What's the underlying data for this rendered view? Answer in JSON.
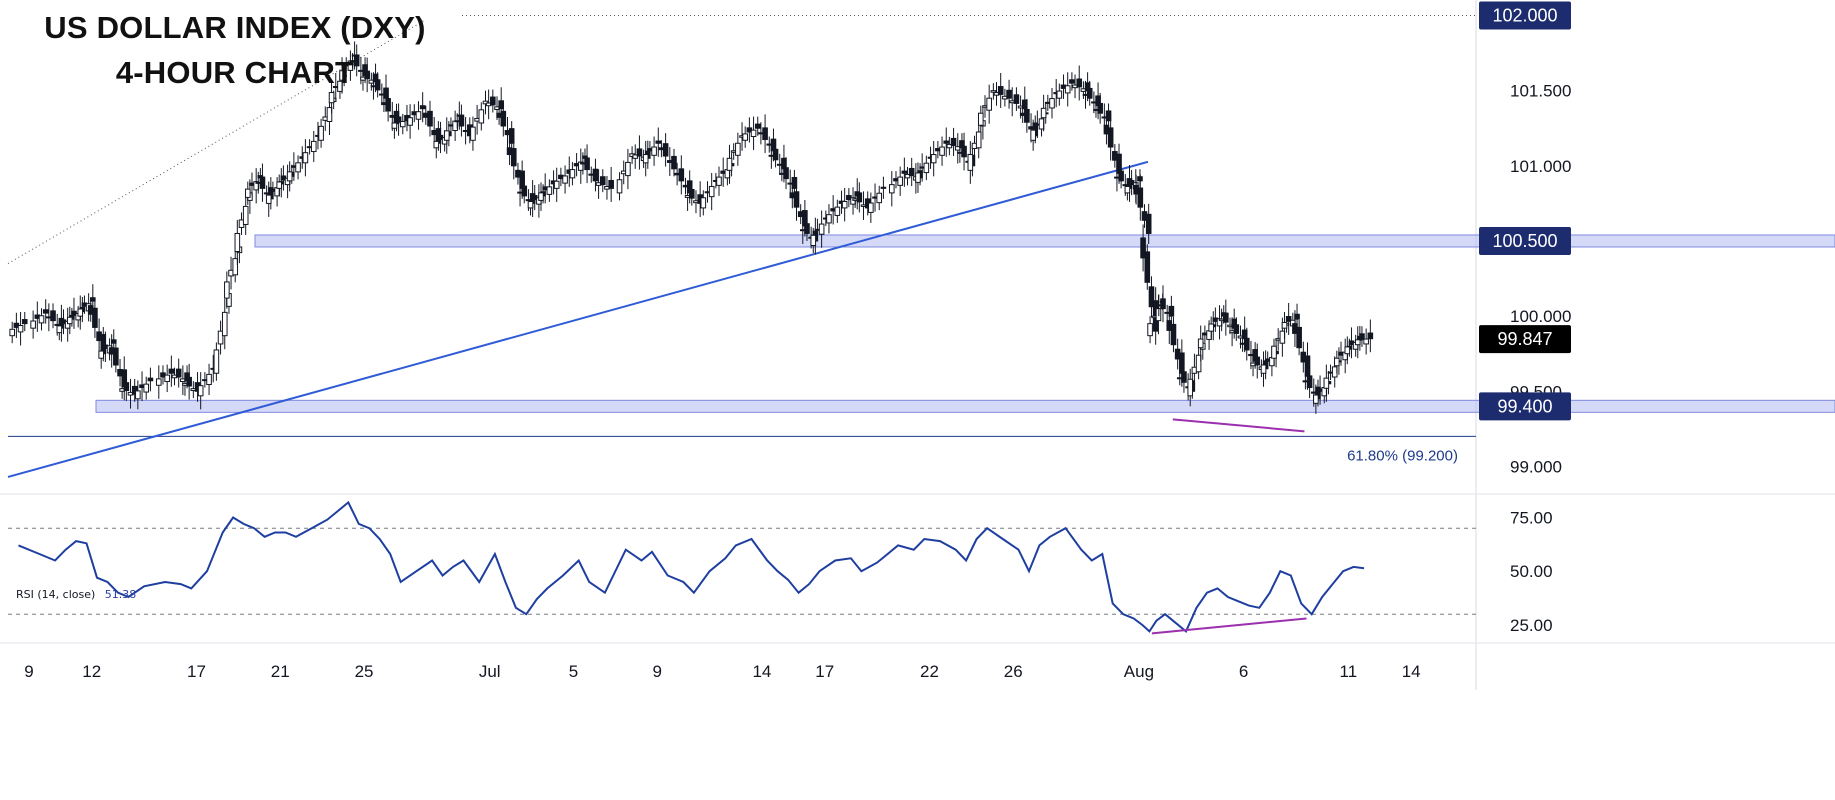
{
  "title_lines": [
    "US DOLLAR INDEX (DXY)",
    "4-HOUR CHART"
  ],
  "chart_data": [
    {
      "type": "candlestick",
      "ylim": [
        98.83,
        102.05
      ],
      "y_ticks": [
        99.0,
        99.5,
        100.0,
        100.5,
        101.0,
        101.5,
        102.0
      ],
      "y_tick_labels": [
        "99.000",
        "99.500",
        "100.000",
        "100.500",
        "101.000",
        "101.500",
        "102.000"
      ],
      "highlight_labels": [
        "102.000",
        "100.500",
        "99.847",
        "99.400"
      ],
      "current_price": "99.847",
      "x_tick_labels": [
        "9",
        "12",
        "17",
        "21",
        "25",
        "Jul",
        "5",
        "9",
        "14",
        "17",
        "22",
        "26",
        "Aug",
        "6",
        "11",
        "14"
      ],
      "support_resistance_zones": [
        100.5,
        99.4
      ],
      "fib_line": {
        "label": "61.80% (99.200)",
        "value": 99.2
      },
      "trendline": {
        "from": [
          "Jun 8",
          98.93
        ],
        "to": [
          "Jul 31",
          101.0
        ]
      },
      "close_path": [
        [
          "Jun 8",
          99.95
        ],
        [
          "Jun 9",
          100.02
        ],
        [
          "Jun 10",
          99.92
        ],
        [
          "Jun 10",
          99.98
        ],
        [
          "Jun 11",
          100.03
        ],
        [
          "Jun 11",
          100.1
        ],
        [
          "Jun 12",
          99.75
        ],
        [
          "Jun 12",
          99.82
        ],
        [
          "Jun 13",
          99.53
        ],
        [
          "Jun 13",
          99.48
        ],
        [
          "Jun 14",
          99.57
        ],
        [
          "Jun 15",
          99.62
        ],
        [
          "Jun 16",
          99.57
        ],
        [
          "Jun 16",
          99.5
        ],
        [
          "Jun 17",
          99.65
        ],
        [
          "Jun 18",
          100.15
        ],
        [
          "Jun 18",
          100.46
        ],
        [
          "Jun 19",
          100.82
        ],
        [
          "Jun 19",
          100.92
        ],
        [
          "Jun 20",
          100.78
        ],
        [
          "Jun 20",
          100.88
        ],
        [
          "Jun 21",
          100.93
        ],
        [
          "Jun 21",
          101.05
        ],
        [
          "Jun 22",
          101.2
        ],
        [
          "Jun 23",
          101.45
        ],
        [
          "Jun 23",
          101.6
        ],
        [
          "Jun 24",
          101.73
        ],
        [
          "Jun 24",
          101.6
        ],
        [
          "Jun 25",
          101.56
        ],
        [
          "Jun 25",
          101.45
        ],
        [
          "Jun 26",
          101.28
        ],
        [
          "Jun 26",
          101.3
        ],
        [
          "Jun 27",
          101.38
        ],
        [
          "Jun 28",
          101.15
        ],
        [
          "Jun 28",
          101.2
        ],
        [
          "Jun 29",
          101.33
        ],
        [
          "Jun 29",
          101.2
        ],
        [
          "Jun 30",
          101.43
        ],
        [
          "Jul 1",
          101.38
        ],
        [
          "Jul 1",
          101.15
        ],
        [
          "Jul 2",
          100.85
        ],
        [
          "Jul 2",
          100.75
        ],
        [
          "Jul 3",
          100.8
        ],
        [
          "Jul 3",
          100.88
        ],
        [
          "Jul 4",
          100.95
        ],
        [
          "Jul 5",
          101.05
        ],
        [
          "Jul 5",
          100.9
        ],
        [
          "Jul 6",
          100.85
        ],
        [
          "Jul 7",
          101.08
        ],
        [
          "Jul 8",
          101.05
        ],
        [
          "Jul 8",
          101.15
        ],
        [
          "Jul 9",
          100.98
        ],
        [
          "Jul 10",
          100.82
        ],
        [
          "Jul 10",
          100.75
        ],
        [
          "Jul 11",
          100.9
        ],
        [
          "Jul 12",
          101.0
        ],
        [
          "Jul 12",
          101.2
        ],
        [
          "Jul 13",
          101.25
        ],
        [
          "Jul 14",
          101.1
        ],
        [
          "Jul 14",
          100.98
        ],
        [
          "Jul 15",
          100.85
        ],
        [
          "Jul 15",
          100.6
        ],
        [
          "Jul 16",
          100.5
        ],
        [
          "Jul 16",
          100.65
        ],
        [
          "Jul 17",
          100.75
        ],
        [
          "Jul 18",
          100.8
        ],
        [
          "Jul 18",
          100.72
        ],
        [
          "Jul 19",
          100.85
        ],
        [
          "Jul 20",
          100.95
        ],
        [
          "Jul 21",
          100.92
        ],
        [
          "Jul 21",
          101.05
        ],
        [
          "Jul 22",
          101.15
        ],
        [
          "Jul 23",
          101.12
        ],
        [
          "Jul 23",
          101.0
        ],
        [
          "Jul 24",
          101.3
        ],
        [
          "Jul 24",
          101.5
        ],
        [
          "Jul 25",
          101.45
        ],
        [
          "Jul 26",
          101.38
        ],
        [
          "Jul 26",
          101.2
        ],
        [
          "Jul 27",
          101.35
        ],
        [
          "Jul 27",
          101.48
        ],
        [
          "Jul 28",
          101.55
        ],
        [
          "Jul 29",
          101.5
        ],
        [
          "Jul 29",
          101.4
        ],
        [
          "Jul 30",
          101.3
        ],
        [
          "Jul 30",
          100.95
        ],
        [
          "Jul 31",
          100.85
        ],
        [
          "Jul 31",
          100.9
        ],
        [
          "Aug 1",
          100.55
        ],
        [
          "Aug 1",
          99.9
        ],
        [
          "Aug 1",
          100.1
        ],
        [
          "Aug 2",
          100.0
        ],
        [
          "Aug 2",
          99.62
        ],
        [
          "Aug 3",
          99.5
        ],
        [
          "Aug 3",
          99.82
        ],
        [
          "Aug 4",
          99.93
        ],
        [
          "Aug 4",
          100.0
        ],
        [
          "Aug 5",
          99.92
        ],
        [
          "Aug 5",
          99.85
        ],
        [
          "Aug 6",
          99.7
        ],
        [
          "Aug 6",
          99.65
        ],
        [
          "Aug 7",
          99.75
        ],
        [
          "Aug 7",
          99.95
        ],
        [
          "Aug 8",
          99.98
        ],
        [
          "Aug 8",
          99.6
        ],
        [
          "Aug 9",
          99.45
        ],
        [
          "Aug 9",
          99.55
        ],
        [
          "Aug 10",
          99.7
        ],
        [
          "Aug 10",
          99.78
        ],
        [
          "Aug 11",
          99.84
        ],
        [
          "Aug 11",
          99.85
        ]
      ]
    },
    {
      "type": "line",
      "label": "RSI (14, close)",
      "last_value": "51.38",
      "ylim": [
        18,
        85
      ],
      "y_ticks": [
        25,
        50,
        75
      ],
      "y_tick_labels": [
        "25.00",
        "50.00",
        "75.00"
      ],
      "guide_levels": [
        30,
        70
      ],
      "x": [
        "Jun 8",
        "Jun 9",
        "Jun 10",
        "Jun 10",
        "Jun 11",
        "Jun 11",
        "Jun 12",
        "Jun 12",
        "Jun 13",
        "Jun 13",
        "Jun 14",
        "Jun 15",
        "Jun 16",
        "Jun 16",
        "Jun 17",
        "Jun 18",
        "Jun 18",
        "Jun 19",
        "Jun 19",
        "Jun 20",
        "Jun 20",
        "Jun 21",
        "Jun 21",
        "Jun 22",
        "Jun 23",
        "Jun 23",
        "Jun 24",
        "Jun 24",
        "Jun 25",
        "Jun 25",
        "Jun 26",
        "Jun 26",
        "Jun 27",
        "Jun 28",
        "Jun 28",
        "Jun 29",
        "Jun 29",
        "Jun 30",
        "Jul 1",
        "Jul 1",
        "Jul 2",
        "Jul 2",
        "Jul 3",
        "Jul 3",
        "Jul 4",
        "Jul 5",
        "Jul 5",
        "Jul 6",
        "Jul 7",
        "Jul 8",
        "Jul 8",
        "Jul 9",
        "Jul 10",
        "Jul 10",
        "Jul 11",
        "Jul 12",
        "Jul 12",
        "Jul 13",
        "Jul 14",
        "Jul 14",
        "Jul 15",
        "Jul 15",
        "Jul 16",
        "Jul 16",
        "Jul 17",
        "Jul 18",
        "Jul 18",
        "Jul 19",
        "Jul 20",
        "Jul 21",
        "Jul 21",
        "Jul 22",
        "Jul 23",
        "Jul 23",
        "Jul 24",
        "Jul 24",
        "Jul 25",
        "Jul 26",
        "Jul 26",
        "Jul 27",
        "Jul 27",
        "Jul 28",
        "Jul 29",
        "Jul 29",
        "Jul 30",
        "Jul 30",
        "Jul 31",
        "Jul 31",
        "Aug 1",
        "Aug 1",
        "Aug 1",
        "Aug 2",
        "Aug 2",
        "Aug 3",
        "Aug 3",
        "Aug 4",
        "Aug 4",
        "Aug 5",
        "Aug 5",
        "Aug 6",
        "Aug 6",
        "Aug 7",
        "Aug 7",
        "Aug 8",
        "Aug 8",
        "Aug 9",
        "Aug 9",
        "Aug 10",
        "Aug 10",
        "Aug 11",
        "Aug 11"
      ],
      "values": [
        62,
        58,
        55,
        60,
        64,
        63,
        47,
        45,
        40,
        38,
        43,
        45,
        44,
        42,
        50,
        68,
        75,
        72,
        70,
        66,
        68,
        68,
        66,
        70,
        74,
        78,
        82,
        72,
        70,
        65,
        58,
        45,
        50,
        55,
        48,
        52,
        55,
        45,
        58,
        45,
        33,
        30,
        37,
        42,
        48,
        55,
        45,
        40,
        60,
        55,
        59,
        48,
        45,
        40,
        50,
        56,
        62,
        65,
        55,
        50,
        46,
        40,
        44,
        50,
        55,
        56,
        50,
        54,
        62,
        60,
        65,
        64,
        60,
        55,
        65,
        70,
        65,
        60,
        50,
        62,
        66,
        70,
        60,
        55,
        58,
        35,
        30,
        28,
        25,
        22,
        27,
        30,
        26,
        22,
        33,
        40,
        42,
        38,
        36,
        34,
        33,
        40,
        50,
        48,
        35,
        30,
        38,
        44,
        50,
        52,
        51.38
      ]
    }
  ],
  "colors": {
    "up": "#ffffff",
    "down": "#131722",
    "trendline": "#2f5bd6",
    "zone_fill": "#b3b9f2",
    "zone_stroke": "#7f8ae0",
    "badge": "#1c2c6e",
    "rsi": "#1f3fa0",
    "divergence": "#9b2fae",
    "fib": "#1e3a8a"
  }
}
